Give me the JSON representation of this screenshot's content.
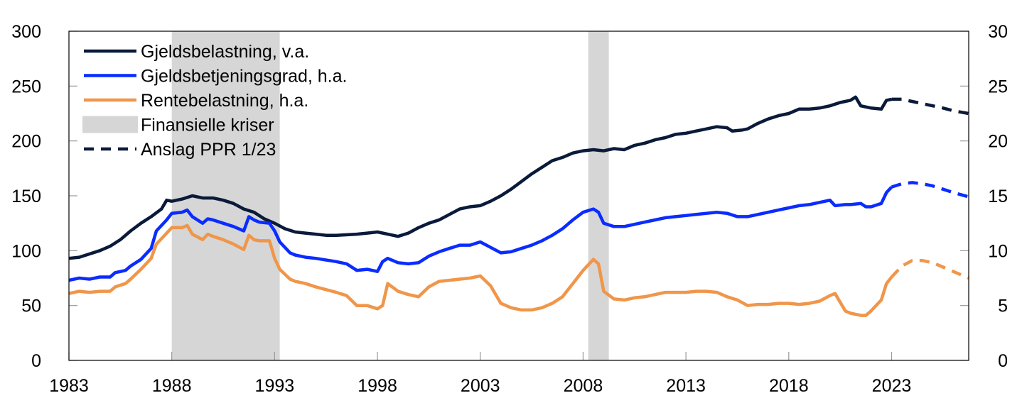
{
  "chart_data": {
    "type": "line",
    "title": "",
    "xlabel": "",
    "ylabel_left": "",
    "ylabel_right": "",
    "xlim": [
      1983,
      2026.75
    ],
    "ylim_left": [
      0,
      300
    ],
    "ylim_right": [
      0,
      30
    ],
    "x_ticks": [
      "1983",
      "1988",
      "1993",
      "1998",
      "2003",
      "2008",
      "2013",
      "2018",
      "2023"
    ],
    "x_tick_values": [
      1983,
      1988,
      1993,
      1998,
      2003,
      2008,
      2013,
      2018,
      2023
    ],
    "y_ticks_left": [
      "0",
      "50",
      "100",
      "150",
      "200",
      "250",
      "300"
    ],
    "y_tick_values_left": [
      0,
      50,
      100,
      150,
      200,
      250,
      300
    ],
    "y_ticks_right": [
      "0",
      "5",
      "10",
      "15",
      "20",
      "25",
      "30"
    ],
    "y_tick_values_right": [
      0,
      5,
      10,
      15,
      20,
      25,
      30
    ],
    "grid": false,
    "legend_position": "top-left",
    "colors": {
      "gjeldsbelastning": "#0a1a3a",
      "gjeldsbetjeningsgrad": "#0a2cff",
      "rentebelastning": "#f0964a",
      "kriser": "#d6d6d6",
      "axis": "#000000",
      "tick": "#999999"
    },
    "legend": [
      {
        "label": "Gjeldsbelastning, v.a.",
        "style": "solid",
        "color_key": "gjeldsbelastning"
      },
      {
        "label": "Gjeldsbetjeningsgrad, h.a.",
        "style": "solid",
        "color_key": "gjeldsbetjeningsgrad"
      },
      {
        "label": "Rentebelastning, h.a.",
        "style": "solid",
        "color_key": "rentebelastning"
      },
      {
        "label": "Finansielle kriser",
        "style": "band",
        "color_key": "kriser"
      },
      {
        "label": "Anslag PPR 1/23",
        "style": "dashed",
        "color_key": "gjeldsbelastning"
      }
    ],
    "crisis_periods": [
      [
        1988.0,
        1993.25
      ],
      [
        2008.25,
        2009.25
      ]
    ],
    "series": [
      {
        "name": "Gjeldsbelastning, v.a.",
        "axis": "left",
        "color_key": "gjeldsbelastning",
        "x": [
          1983,
          1983.5,
          1984,
          1984.5,
          1985,
          1985.5,
          1986,
          1986.5,
          1987,
          1987.5,
          1987.75,
          1988,
          1988.5,
          1989,
          1989.5,
          1990,
          1990.5,
          1991,
          1991.5,
          1992,
          1992.5,
          1993,
          1993.5,
          1994,
          1994.5,
          1995,
          1995.5,
          1996,
          1997,
          1997.5,
          1998,
          1998.5,
          1999,
          1999.5,
          2000,
          2000.5,
          2001,
          2001.5,
          2002,
          2002.5,
          2003,
          2003.5,
          2004,
          2004.5,
          2005,
          2005.5,
          2006,
          2006.5,
          2007,
          2007.5,
          2008,
          2008.5,
          2009,
          2009.5,
          2010,
          2010.5,
          2011,
          2011.5,
          2012,
          2012.5,
          2013,
          2013.5,
          2014,
          2014.5,
          2015,
          2015.25,
          2015.75,
          2016,
          2016.5,
          2017,
          2017.5,
          2018,
          2018.5,
          2019,
          2019.5,
          2020,
          2020.5,
          2021,
          2021.25,
          2021.5,
          2022,
          2022.5,
          2022.75,
          2023
        ],
        "values": [
          93,
          94,
          97,
          100,
          104,
          110,
          118,
          125,
          131,
          138,
          146,
          145,
          147,
          150,
          148,
          148,
          146,
          143,
          138,
          135,
          129,
          125,
          120,
          117,
          116,
          115,
          114,
          114,
          115,
          116,
          117,
          115,
          113,
          116,
          121,
          125,
          128,
          133,
          138,
          140,
          141,
          145,
          150,
          156,
          163,
          170,
          176,
          182,
          185,
          189,
          191,
          192,
          191,
          193,
          192,
          196,
          198,
          201,
          203,
          206,
          207,
          209,
          211,
          213,
          212,
          209,
          210,
          211,
          216,
          220,
          223,
          225,
          229,
          229,
          230,
          232,
          235,
          237,
          240,
          232,
          230,
          229,
          237,
          238
        ]
      },
      {
        "name": "Gjeldsbetjeningsgrad, h.a.",
        "axis": "right",
        "color_key": "gjeldsbetjeningsgrad",
        "x": [
          1983,
          1983.5,
          1984,
          1984.5,
          1985,
          1985.25,
          1985.75,
          1986,
          1986.5,
          1987,
          1987.25,
          1987.75,
          1988,
          1988.5,
          1988.75,
          1989,
          1989.5,
          1989.75,
          1990,
          1990.5,
          1991,
          1991.5,
          1991.75,
          1992,
          1992.25,
          1992.75,
          1993,
          1993.25,
          1993.75,
          1994,
          1994.5,
          1995,
          1996,
          1996.5,
          1997,
          1997.5,
          1998,
          1998.25,
          1998.5,
          1999,
          1999.5,
          2000,
          2000.5,
          2001,
          2001.5,
          2002,
          2002.5,
          2003,
          2003.5,
          2004,
          2004.5,
          2005,
          2005.5,
          2006,
          2006.5,
          2007,
          2007.5,
          2008,
          2008.5,
          2008.75,
          2009,
          2009.5,
          2010,
          2010.5,
          2011,
          2011.5,
          2012,
          2012.5,
          2013,
          2013.5,
          2014,
          2014.5,
          2015,
          2015.5,
          2016,
          2016.5,
          2017,
          2017.5,
          2018,
          2018.5,
          2019,
          2019.5,
          2020,
          2020.25,
          2020.75,
          2021,
          2021.5,
          2021.75,
          2022,
          2022.5,
          2022.75,
          2023
        ],
        "values": [
          7.3,
          7.5,
          7.4,
          7.6,
          7.6,
          8.0,
          8.2,
          8.6,
          9.2,
          10.2,
          11.8,
          12.8,
          13.4,
          13.5,
          13.7,
          13.1,
          12.5,
          12.9,
          12.8,
          12.5,
          12.2,
          11.8,
          13.1,
          12.8,
          12.6,
          12.5,
          11.8,
          10.8,
          9.8,
          9.6,
          9.4,
          9.3,
          9.0,
          8.8,
          8.2,
          8.3,
          8.1,
          9.0,
          9.3,
          8.9,
          8.8,
          8.9,
          9.5,
          9.9,
          10.2,
          10.5,
          10.5,
          10.8,
          10.3,
          9.8,
          9.9,
          10.2,
          10.5,
          10.9,
          11.4,
          12.0,
          12.8,
          13.5,
          13.8,
          13.5,
          12.5,
          12.2,
          12.2,
          12.4,
          12.6,
          12.8,
          13.0,
          13.1,
          13.2,
          13.3,
          13.4,
          13.5,
          13.4,
          13.1,
          13.1,
          13.3,
          13.5,
          13.7,
          13.9,
          14.1,
          14.2,
          14.4,
          14.6,
          14.1,
          14.2,
          14.2,
          14.3,
          14.0,
          14.0,
          14.3,
          15.3,
          15.8
        ]
      },
      {
        "name": "Rentebelastning, h.a.",
        "axis": "right",
        "color_key": "rentebelastning",
        "x": [
          1983,
          1983.5,
          1984,
          1984.5,
          1985,
          1985.25,
          1985.75,
          1986,
          1986.5,
          1987,
          1987.25,
          1987.75,
          1988,
          1988.5,
          1988.75,
          1989,
          1989.5,
          1989.75,
          1990,
          1990.5,
          1991,
          1991.5,
          1991.75,
          1992,
          1992.25,
          1992.75,
          1993,
          1993.25,
          1993.75,
          1994,
          1994.5,
          1995,
          1996,
          1996.5,
          1997,
          1997.5,
          1998,
          1998.25,
          1998.5,
          1999,
          1999.5,
          2000,
          2000.5,
          2001,
          2001.5,
          2002,
          2002.5,
          2003,
          2003.5,
          2004,
          2004.5,
          2005,
          2005.5,
          2006,
          2006.5,
          2007,
          2007.5,
          2008,
          2008.5,
          2008.75,
          2009,
          2009.5,
          2010,
          2010.5,
          2011,
          2011.5,
          2012,
          2012.5,
          2013,
          2013.5,
          2014,
          2014.5,
          2015,
          2015.5,
          2016,
          2016.5,
          2017,
          2017.5,
          2018,
          2018.5,
          2019,
          2019.5,
          2020,
          2020.25,
          2020.75,
          2021,
          2021.5,
          2021.75,
          2022,
          2022.5,
          2022.75,
          2023
        ],
        "values": [
          6.1,
          6.3,
          6.2,
          6.3,
          6.3,
          6.7,
          7.0,
          7.4,
          8.3,
          9.3,
          10.6,
          11.6,
          12.1,
          12.1,
          12.3,
          11.5,
          11.0,
          11.5,
          11.3,
          11.0,
          10.6,
          10.1,
          11.4,
          11.0,
          10.9,
          10.9,
          9.3,
          8.3,
          7.4,
          7.2,
          7.0,
          6.7,
          6.2,
          5.9,
          5.0,
          5.0,
          4.7,
          5.0,
          7.0,
          6.3,
          6.0,
          5.8,
          6.7,
          7.2,
          7.3,
          7.4,
          7.5,
          7.7,
          6.8,
          5.2,
          4.8,
          4.6,
          4.6,
          4.8,
          5.2,
          5.8,
          7.0,
          8.2,
          9.2,
          8.8,
          6.3,
          5.6,
          5.5,
          5.7,
          5.8,
          6.0,
          6.2,
          6.2,
          6.2,
          6.3,
          6.3,
          6.2,
          5.8,
          5.5,
          5.0,
          5.1,
          5.1,
          5.2,
          5.2,
          5.1,
          5.2,
          5.4,
          5.9,
          6.1,
          4.5,
          4.3,
          4.1,
          4.1,
          4.5,
          5.5,
          7.0,
          7.6
        ]
      },
      {
        "name": "Anslag PPR 1/23 - Gjeldsbelastning",
        "axis": "left",
        "dashed": true,
        "color_key": "gjeldsbelastning",
        "x": [
          2023,
          2023.5,
          2024,
          2024.5,
          2025,
          2025.5,
          2026,
          2026.75
        ],
        "values": [
          238,
          238,
          236,
          234,
          232,
          230,
          227.5,
          225
        ]
      },
      {
        "name": "Anslag PPR 1/23 - Gjeldsbetjeningsgrad",
        "axis": "right",
        "dashed": true,
        "color_key": "gjeldsbetjeningsgrad",
        "x": [
          2023,
          2023.5,
          2024,
          2024.5,
          2025,
          2025.5,
          2026,
          2026.75
        ],
        "values": [
          15.8,
          16.1,
          16.2,
          16.1,
          15.9,
          15.6,
          15.3,
          14.9
        ]
      },
      {
        "name": "Anslag PPR 1/23 - Rentebelastning",
        "axis": "right",
        "dashed": true,
        "color_key": "rentebelastning",
        "x": [
          2023,
          2023.5,
          2024,
          2024.5,
          2025,
          2025.5,
          2026,
          2026.75
        ],
        "values": [
          7.6,
          8.6,
          9.1,
          9.1,
          8.9,
          8.5,
          8.1,
          7.5
        ]
      }
    ]
  }
}
